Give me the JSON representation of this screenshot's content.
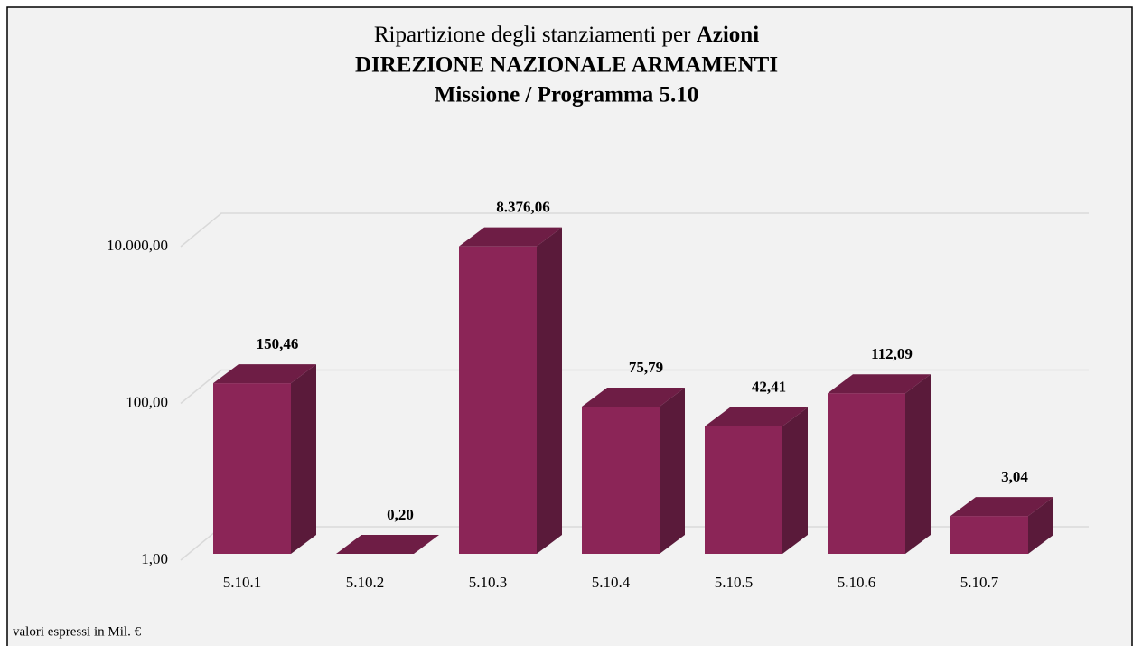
{
  "chart_data": {
    "type": "bar3d",
    "title": [
      "Ripartizione degli stanziamenti per",
      "Azioni"
    ],
    "subtitle": [
      "DIREZIONE NAZIONALE ARMAMENTI",
      "Missione / Programma 5.10"
    ],
    "note": "valori espressi in Mil. €",
    "categories": [
      "5.10.1",
      "5.10.2",
      "5.10.3",
      "5.10.4",
      "5.10.5",
      "5.10.6",
      "5.10.7"
    ],
    "values": [
      150.46,
      0.2,
      8376.06,
      75.79,
      42.41,
      112.09,
      3.04
    ],
    "value_labels": [
      "150,46",
      "0,20",
      "8.376,06",
      "75,79",
      "42,41",
      "112,09",
      "3,04"
    ],
    "color": "#8b2557",
    "log_scale": true,
    "ylim": [
      1,
      10000
    ],
    "yticks": [
      {
        "value": 1,
        "label": "1,00"
      },
      {
        "value": 100,
        "label": "100,00"
      },
      {
        "value": 10000,
        "label": "10.000,00"
      }
    ],
    "grid": true
  }
}
